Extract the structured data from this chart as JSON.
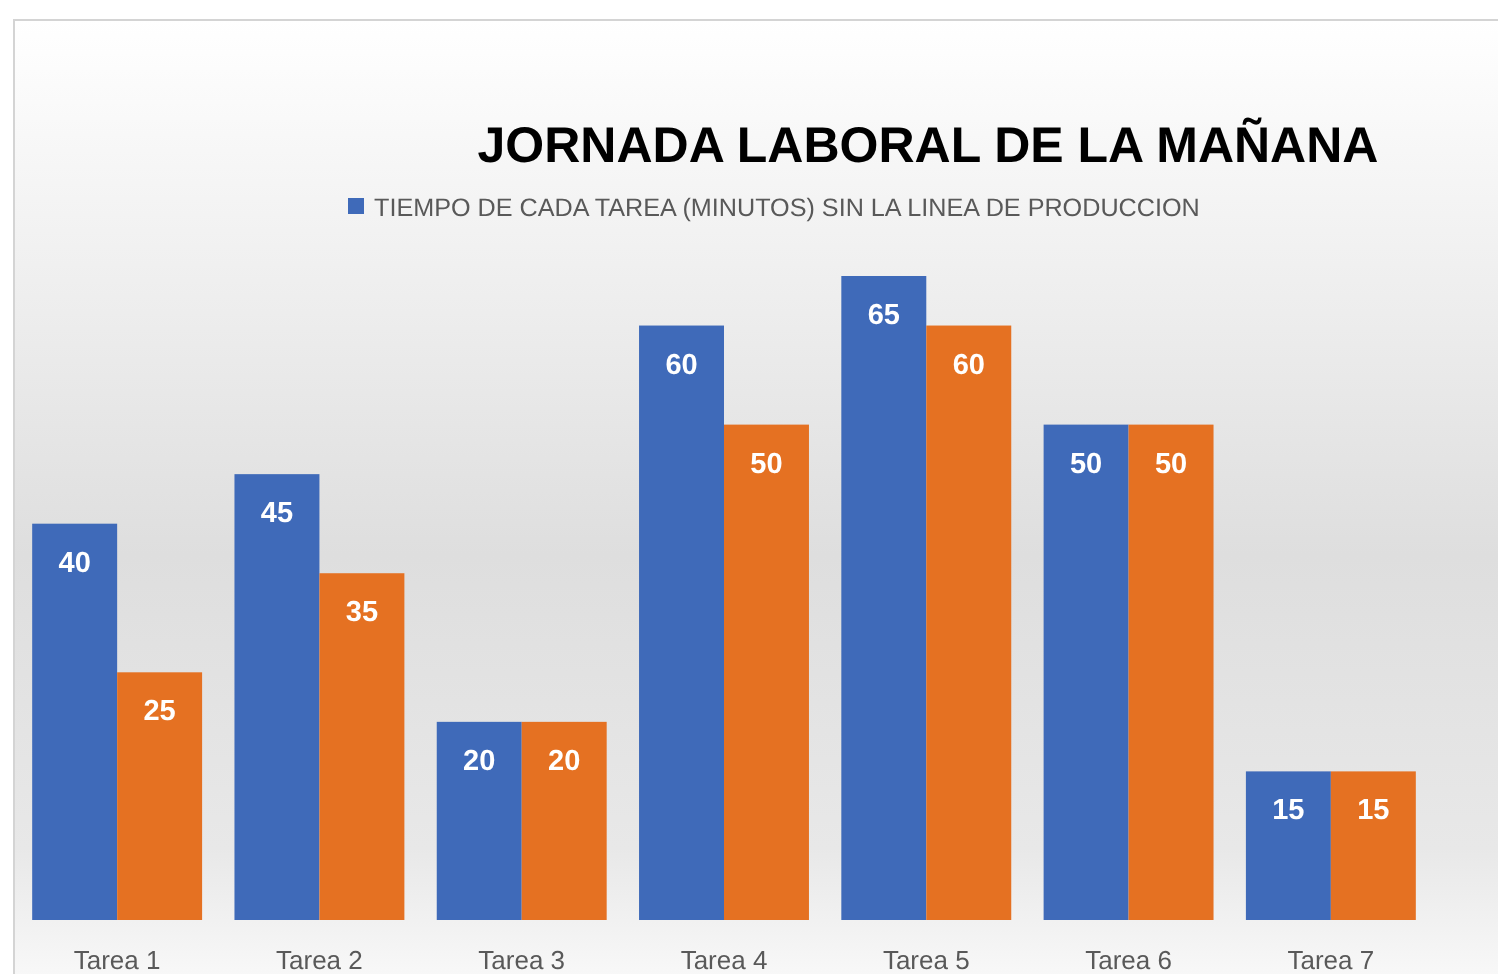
{
  "chart_data": {
    "type": "bar",
    "title": "JORNADA LABORAL DE LA MAÑANA",
    "categories": [
      "Tarea 1",
      "Tarea 2",
      "Tarea 3",
      "Tarea 4",
      "Tarea 5",
      "Tarea 6",
      "Tarea 7"
    ],
    "series": [
      {
        "name": "TIEMPO DE CADA TAREA (MINUTOS) SIN LA LINEA DE PRODUCCION",
        "color": "#3f6ab9",
        "values": [
          40,
          45,
          20,
          60,
          65,
          50,
          15
        ]
      },
      {
        "color": "#e57122",
        "values": [
          25,
          35,
          20,
          50,
          60,
          50,
          15
        ]
      }
    ],
    "tick_labels": "x",
    "data_labels": true,
    "legend": "top"
  }
}
